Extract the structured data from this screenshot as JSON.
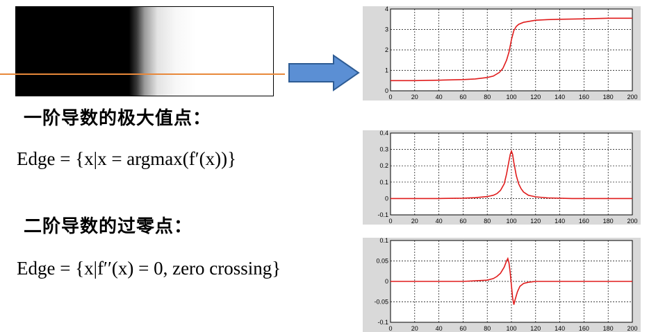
{
  "headings": {
    "first_derivative": "一阶导数的极大值点：",
    "second_derivative": "二阶导数的过零点："
  },
  "formulas": {
    "first": "Edge = {x|x = argmax(f′(x))}",
    "second": "Edge = {x|f′′(x) = 0, zero crossing}"
  },
  "colors": {
    "scanline": "#e8883a",
    "arrow_fill": "#5b8fd4",
    "arrow_stroke": "#2e5c94",
    "curve": "#e01b1b"
  },
  "chart_data": [
    {
      "type": "line",
      "xlim": [
        0,
        200
      ],
      "ylim": [
        0,
        4
      ],
      "xticks": [
        0,
        20,
        40,
        60,
        80,
        100,
        120,
        140,
        160,
        180,
        200
      ],
      "yticks": [
        0,
        1,
        2,
        3,
        4
      ],
      "grid": true,
      "series": [
        {
          "x": [
            0,
            20,
            40,
            60,
            70,
            80,
            85,
            90,
            93,
            96,
            98,
            100,
            102,
            104,
            106,
            110,
            115,
            120,
            130,
            140,
            160,
            180,
            200
          ],
          "values": [
            0.5,
            0.5,
            0.52,
            0.55,
            0.58,
            0.65,
            0.72,
            0.9,
            1.1,
            1.5,
            1.9,
            2.5,
            2.95,
            3.15,
            3.25,
            3.35,
            3.4,
            3.45,
            3.48,
            3.5,
            3.52,
            3.55,
            3.55
          ]
        }
      ]
    },
    {
      "type": "line",
      "xlim": [
        0,
        200
      ],
      "ylim": [
        -0.1,
        0.4
      ],
      "xticks": [
        0,
        20,
        40,
        60,
        80,
        100,
        120,
        140,
        160,
        180,
        200
      ],
      "yticks": [
        -0.1,
        0,
        0.1,
        0.2,
        0.3,
        0.4
      ],
      "grid": true,
      "series": [
        {
          "x": [
            0,
            40,
            60,
            70,
            80,
            85,
            88,
            91,
            94,
            96,
            98,
            99,
            100,
            101,
            102,
            104,
            106,
            108,
            110,
            114,
            120,
            130,
            150,
            200
          ],
          "values": [
            0,
            0,
            0.002,
            0.005,
            0.012,
            0.02,
            0.03,
            0.05,
            0.09,
            0.15,
            0.23,
            0.27,
            0.29,
            0.27,
            0.22,
            0.14,
            0.09,
            0.06,
            0.04,
            0.02,
            0.01,
            0.004,
            0,
            0
          ]
        }
      ]
    },
    {
      "type": "line",
      "xlim": [
        0,
        200
      ],
      "ylim": [
        -0.1,
        0.1
      ],
      "xticks": [
        0,
        20,
        40,
        60,
        80,
        100,
        120,
        140,
        160,
        180,
        200
      ],
      "yticks": [
        -0.1,
        -0.05,
        0,
        0.05,
        0.1
      ],
      "grid": true,
      "series": [
        {
          "x": [
            0,
            60,
            80,
            85,
            88,
            91,
            94,
            96,
            97,
            98,
            99,
            100,
            101,
            102,
            103,
            105,
            107,
            110,
            114,
            120,
            200
          ],
          "values": [
            0,
            0,
            0.003,
            0.007,
            0.012,
            0.02,
            0.035,
            0.05,
            0.056,
            0.045,
            0.02,
            -0.01,
            -0.04,
            -0.057,
            -0.045,
            -0.025,
            -0.012,
            -0.005,
            -0.002,
            0,
            0
          ]
        }
      ]
    }
  ]
}
